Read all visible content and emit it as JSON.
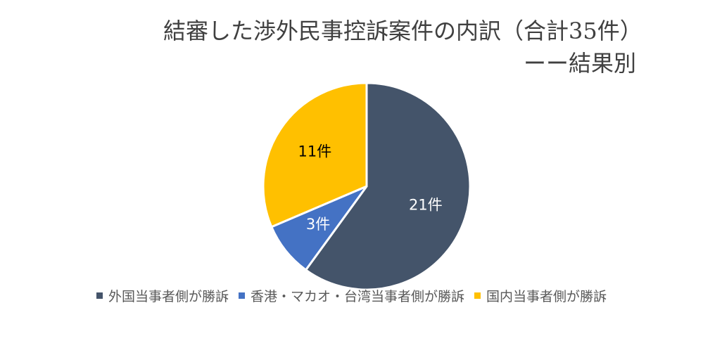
{
  "chart_data": {
    "type": "pie",
    "title_line1": "結審した渉外民事控訴案件の内訳（合計35件）",
    "title_line2": "ーー結果別",
    "categories": [
      "外国当事者側が勝訴",
      "香港・マカオ・台湾当事者側が勝訴",
      "国内当事者側が勝訴"
    ],
    "values": [
      21,
      3,
      11
    ],
    "data_labels": [
      "21件",
      "3件",
      "11件"
    ],
    "colors": [
      "#44546a",
      "#4472c4",
      "#ffc000"
    ],
    "label_colors": [
      "#ffffff",
      "#ffffff",
      "#000000"
    ],
    "legend_position": "bottom",
    "start_angle": "top, clockwise"
  }
}
